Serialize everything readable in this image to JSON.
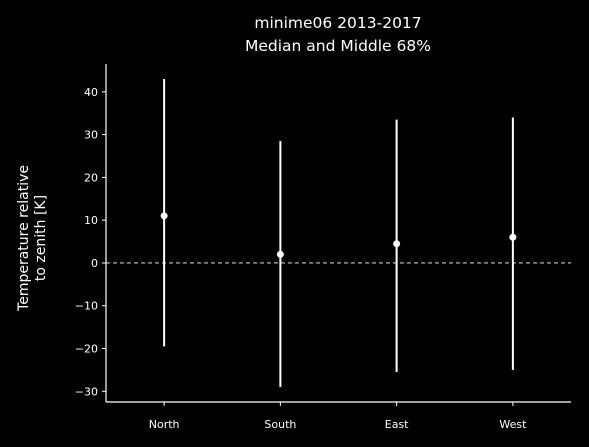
{
  "chart_data": {
    "type": "errorbar",
    "title": "minime06 2013-2017",
    "subtitle": "Median and Middle 68%",
    "ylabel_line1": "Temperature relative",
    "ylabel_line2": "to zenith [K]",
    "xlabel": "",
    "categories": [
      "North",
      "South",
      "East",
      "West"
    ],
    "median": [
      11,
      2,
      4.5,
      6
    ],
    "lower": [
      -19.5,
      -29,
      -25.5,
      -25
    ],
    "upper": [
      43,
      28.5,
      33.5,
      34
    ],
    "ylim": [
      -32.5,
      46.5
    ],
    "yticks": [
      -30,
      -20,
      -10,
      0,
      10,
      20,
      30,
      40
    ],
    "reference_line": 0,
    "grid": false,
    "colors": {
      "background": "#000000",
      "foreground": "#ffffff"
    }
  }
}
